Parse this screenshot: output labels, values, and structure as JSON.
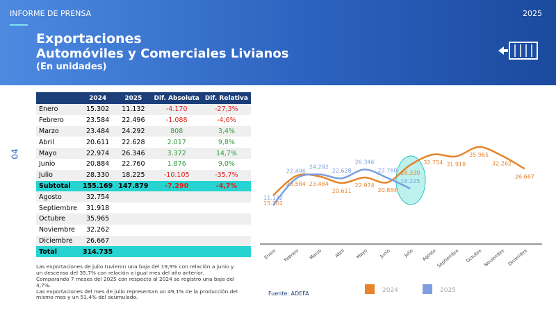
{
  "header": {
    "label": "INFORME DE PRENSA",
    "year": "2025",
    "title": "Exportaciones",
    "subtitle": "Automóviles y Comerciales Livianos",
    "unit": "(En unidades)"
  },
  "page_number": "04",
  "table": {
    "columns": [
      "2024",
      "2025",
      "Dif. Absoluta",
      "Dif. Relativa"
    ],
    "highlight_rows": [
      7,
      13
    ],
    "rows": [
      [
        "Enero",
        "15.302",
        "11.132",
        "-4.170",
        "-27,3%"
      ],
      [
        "Febrero",
        "23.584",
        "22.496",
        "-1.088",
        "-4,6%"
      ],
      [
        "Marzo",
        "23.484",
        "24.292",
        "808",
        "3,4%"
      ],
      [
        "Abril",
        "20.611",
        "22.628",
        "2.017",
        "9,8%"
      ],
      [
        "Mayo",
        "22.974",
        "26.346",
        "3.372",
        "14,7%"
      ],
      [
        "Junio",
        "20.884",
        "22.760",
        "1.876",
        "9,0%"
      ],
      [
        "Julio",
        "28.330",
        "18.225",
        "-10.105",
        "-35,7%"
      ],
      [
        "Subtotal",
        "155.169",
        "147.879",
        "-7.290",
        "-4,7%"
      ],
      [
        "Agosto",
        "32.754"
      ],
      [
        "Septiembre",
        "31.918"
      ],
      [
        "Octubre",
        "35.965"
      ],
      [
        "Noviembre",
        "32.262"
      ],
      [
        "Diciembre",
        "26.667"
      ],
      [
        "Total",
        "314.735"
      ]
    ]
  },
  "notes": [
    "Las exportaciones de julio tuvieron una baja del 19,9% con relación a junio y un descenso del 35,7% con relación a igual mes del año anterior.",
    "Comparando 7 meses del 2025 con respecto al 2024 se registró una baja del 4,7%.",
    "Las exportaciones del mes de julio representan un 49,1% de la producción del mismo mes y un 51,4% del acumulado."
  ],
  "chart_data": {
    "type": "line",
    "source": "Fuente: ADEFA",
    "categories": [
      "Enero",
      "Febrero",
      "Marzo",
      "Abril",
      "Mayo",
      "Junio",
      "Julio",
      "Agosto",
      "Septiembre",
      "Octubre",
      "Noviembre",
      "Diciembre"
    ],
    "series": [
      {
        "name": "2024",
        "color": "#e8832a",
        "values": [
          15302,
          23584,
          23484,
          20611,
          22974,
          20884,
          28330,
          32754,
          31918,
          35965,
          32262,
          26667
        ],
        "value_labels": [
          "15.302",
          "23.584",
          "23.484",
          "20.611",
          "22.974",
          "20.884",
          "28.330",
          "32.754",
          "31.918",
          "35.965",
          "32.262",
          "26.667"
        ]
      },
      {
        "name": "2025",
        "color": "#7b9fe0",
        "values": [
          11132,
          22496,
          24292,
          22628,
          26346,
          22760,
          18225,
          null,
          null,
          null,
          null,
          null
        ],
        "value_labels": [
          "11.132",
          "22.496",
          "24.292",
          "22.628",
          "26.346",
          "22.760",
          "18.225",
          null,
          null,
          null,
          null,
          null
        ]
      }
    ]
  }
}
